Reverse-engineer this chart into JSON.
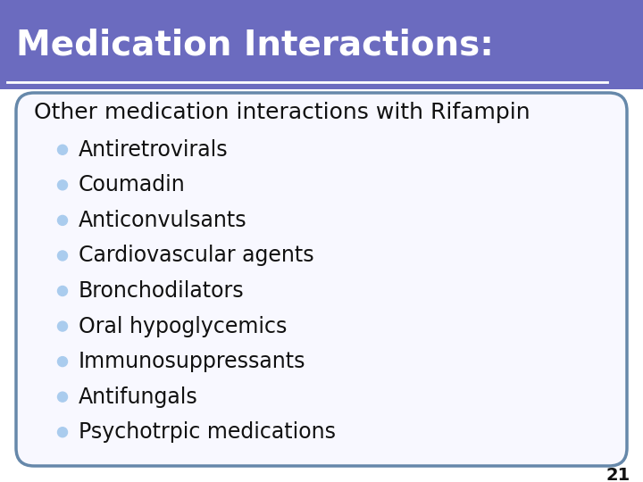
{
  "title": "Medication Interactions:",
  "title_bg_color": "#6B6BBF",
  "title_text_color": "#FFFFFF",
  "subtitle": "Other medication interactions with Rifampin",
  "subtitle_color": "#111111",
  "bullet_items": [
    "Antiretrovirals",
    "Coumadin",
    "Anticonvulsants",
    "Cardiovascular agents",
    "Bronchodilators",
    "Oral hypoglycemics",
    "Immunosuppressants",
    "Antifungals",
    "Psychotrpic medications"
  ],
  "bullet_color": "#AACCEE",
  "bullet_text_color": "#111111",
  "slide_bg_color": "#FFFFFF",
  "border_color": "#6688AA",
  "separator_color": "#FFFFFF",
  "page_number": "21",
  "page_num_color": "#111111",
  "title_bar_height": 100,
  "title_fontsize": 28,
  "subtitle_fontsize": 18,
  "bullet_fontsize": 17,
  "page_num_fontsize": 14
}
